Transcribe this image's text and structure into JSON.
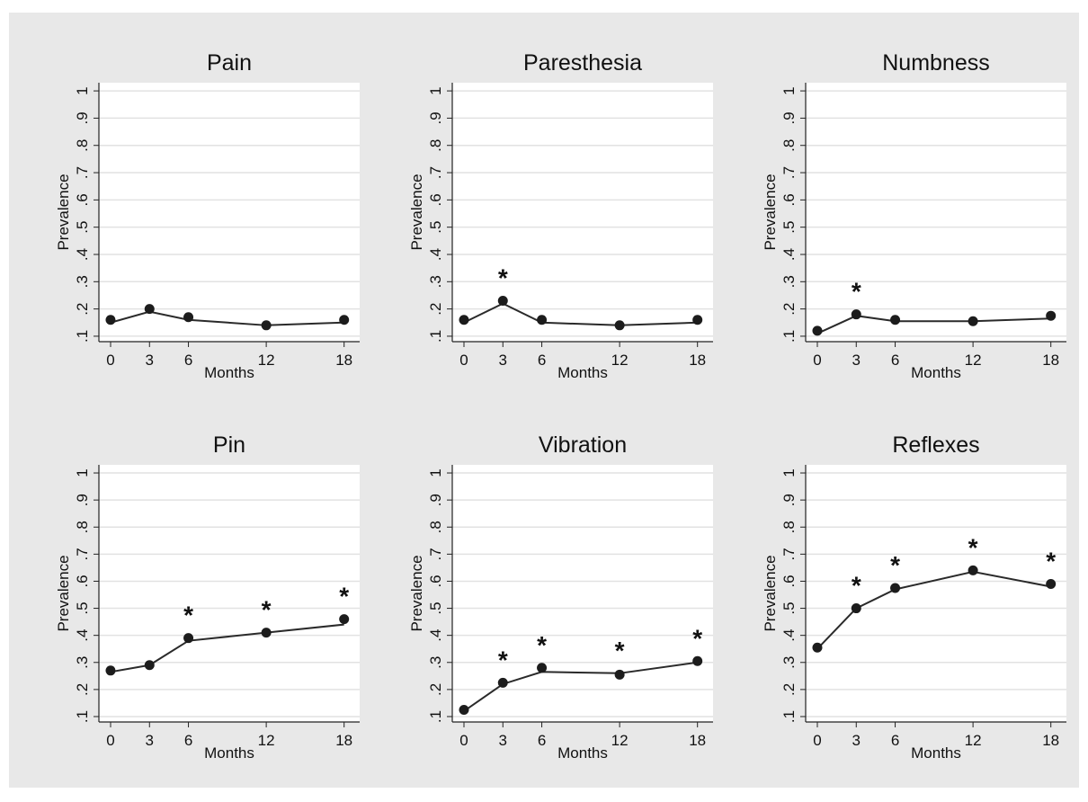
{
  "chart_data": [
    {
      "type": "line",
      "title": "Pain",
      "xlabel": "Months",
      "ylabel": "Prevalence",
      "x": [
        0,
        3,
        6,
        12,
        18
      ],
      "xticks": [
        "0",
        "3",
        "6",
        "12",
        "18"
      ],
      "xlim": [
        -0.9,
        19.2
      ],
      "yticks": [
        ".1",
        ".2",
        ".3",
        ".4",
        ".5",
        ".6",
        ".7",
        ".8",
        ".9",
        "1"
      ],
      "ylim": [
        0.08,
        1.03
      ],
      "grid": true,
      "series": [
        {
          "values": [
            0.16,
            0.2,
            0.17,
            0.14,
            0.16
          ],
          "fit": [
            0.15,
            0.19,
            0.16,
            0.14,
            0.15
          ]
        }
      ],
      "annotations": []
    },
    {
      "type": "line",
      "title": "Paresthesia",
      "xlabel": "Months",
      "ylabel": "Prevalence",
      "x": [
        0,
        3,
        6,
        12,
        18
      ],
      "xticks": [
        "0",
        "3",
        "6",
        "12",
        "18"
      ],
      "xlim": [
        -0.9,
        19.2
      ],
      "yticks": [
        ".1",
        ".2",
        ".3",
        ".4",
        ".5",
        ".6",
        ".7",
        ".8",
        ".9",
        "1"
      ],
      "ylim": [
        0.08,
        1.03
      ],
      "grid": true,
      "series": [
        {
          "values": [
            0.16,
            0.23,
            0.16,
            0.14,
            0.16
          ],
          "fit": [
            0.15,
            0.22,
            0.15,
            0.14,
            0.15
          ]
        }
      ],
      "annotations": [
        {
          "x": 3,
          "text": "*"
        }
      ]
    },
    {
      "type": "line",
      "title": "Numbness",
      "xlabel": "Months",
      "ylabel": "Prevalence",
      "x": [
        0,
        3,
        6,
        12,
        18
      ],
      "xticks": [
        "0",
        "3",
        "6",
        "12",
        "18"
      ],
      "xlim": [
        -0.9,
        19.2
      ],
      "yticks": [
        ".1",
        ".2",
        ".3",
        ".4",
        ".5",
        ".6",
        ".7",
        ".8",
        ".9",
        "1"
      ],
      "ylim": [
        0.08,
        1.03
      ],
      "grid": true,
      "series": [
        {
          "values": [
            0.12,
            0.18,
            0.16,
            0.155,
            0.175
          ],
          "fit": [
            0.11,
            0.175,
            0.155,
            0.155,
            0.165
          ]
        }
      ],
      "annotations": [
        {
          "x": 3,
          "text": "*"
        }
      ]
    },
    {
      "type": "line",
      "title": "Pin",
      "xlabel": "Months",
      "ylabel": "Prevalence",
      "x": [
        0,
        3,
        6,
        12,
        18
      ],
      "xticks": [
        "0",
        "3",
        "6",
        "12",
        "18"
      ],
      "xlim": [
        -0.9,
        19.2
      ],
      "yticks": [
        ".1",
        ".2",
        ".3",
        ".4",
        ".5",
        ".6",
        ".7",
        ".8",
        ".9",
        "1"
      ],
      "ylim": [
        0.08,
        1.03
      ],
      "grid": true,
      "series": [
        {
          "values": [
            0.27,
            0.29,
            0.39,
            0.41,
            0.46
          ],
          "fit": [
            0.265,
            0.29,
            0.38,
            0.41,
            0.44
          ]
        }
      ],
      "annotations": [
        {
          "x": 6,
          "text": "*"
        },
        {
          "x": 12,
          "text": "*"
        },
        {
          "x": 18,
          "text": "*"
        }
      ]
    },
    {
      "type": "line",
      "title": "Vibration",
      "xlabel": "Months",
      "ylabel": "Prevalence",
      "x": [
        0,
        3,
        6,
        12,
        18
      ],
      "xticks": [
        "0",
        "3",
        "6",
        "12",
        "18"
      ],
      "xlim": [
        -0.9,
        19.2
      ],
      "yticks": [
        ".1",
        ".2",
        ".3",
        ".4",
        ".5",
        ".6",
        ".7",
        ".8",
        ".9",
        "1"
      ],
      "ylim": [
        0.08,
        1.03
      ],
      "grid": true,
      "series": [
        {
          "values": [
            0.125,
            0.225,
            0.28,
            0.255,
            0.305
          ],
          "fit": [
            0.12,
            0.22,
            0.265,
            0.26,
            0.3
          ]
        }
      ],
      "annotations": [
        {
          "x": 3,
          "text": "*"
        },
        {
          "x": 6,
          "text": "*"
        },
        {
          "x": 12,
          "text": "*"
        },
        {
          "x": 18,
          "text": "*"
        }
      ]
    },
    {
      "type": "line",
      "title": "Reflexes",
      "xlabel": "Months",
      "ylabel": "Prevalence",
      "x": [
        0,
        3,
        6,
        12,
        18
      ],
      "xticks": [
        "0",
        "3",
        "6",
        "12",
        "18"
      ],
      "xlim": [
        -0.9,
        19.2
      ],
      "yticks": [
        ".1",
        ".2",
        ".3",
        ".4",
        ".5",
        ".6",
        ".7",
        ".8",
        ".9",
        "1"
      ],
      "ylim": [
        0.08,
        1.03
      ],
      "grid": true,
      "series": [
        {
          "values": [
            0.355,
            0.5,
            0.575,
            0.64,
            0.59
          ],
          "fit": [
            0.35,
            0.5,
            0.57,
            0.635,
            0.58
          ]
        }
      ],
      "annotations": [
        {
          "x": 3,
          "text": "*"
        },
        {
          "x": 6,
          "text": "*"
        },
        {
          "x": 12,
          "text": "*"
        },
        {
          "x": 18,
          "text": "*"
        }
      ]
    }
  ],
  "colors": {
    "figure_background": "#e8e8e8",
    "plot_background": "#ffffff",
    "grid": "#e2e2e2",
    "line": "#2a2a2a",
    "marker": "#1c1c1c",
    "axis": "#222222"
  }
}
